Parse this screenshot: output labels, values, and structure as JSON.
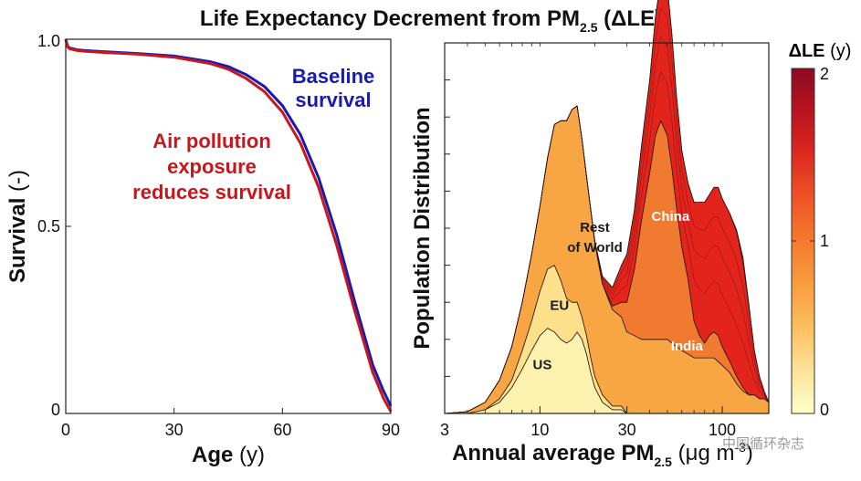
{
  "figure": {
    "title_main": "Life Expectancy Decrement from PM",
    "title_sub": "2.5",
    "title_tail": " (ΔLE)",
    "watermark": "中国循环杂志"
  },
  "chart_data": [
    {
      "type": "line",
      "xlabel_main": "Age",
      "xlabel_unit": " (y)",
      "ylabel_main": "Survival",
      "ylabel_unit": " (-)",
      "xlim": [
        0,
        90
      ],
      "ylim": [
        0,
        1
      ],
      "x_ticks": [
        "0",
        "30",
        "60",
        "90"
      ],
      "x_tick_values": [
        0,
        30,
        60,
        90
      ],
      "y_ticks": [
        "0",
        "0.5",
        "1.0"
      ],
      "y_tick_values": [
        0,
        0.5,
        1.0
      ],
      "annotations": [
        {
          "lines": [
            "Baseline",
            "survival"
          ],
          "color": "#1a1ab0"
        },
        {
          "lines": [
            "Air pollution",
            "exposure",
            "reduces survival"
          ],
          "color": "#c8161d"
        }
      ],
      "series": [
        {
          "name": "Baseline survival",
          "color": "#1a1ab0",
          "x": [
            0,
            0.5,
            1,
            3,
            5,
            10,
            20,
            30,
            40,
            45,
            50,
            55,
            60,
            65,
            70,
            75,
            80,
            85,
            88,
            90
          ],
          "y": [
            1.0,
            0.982,
            0.977,
            0.972,
            0.97,
            0.967,
            0.962,
            0.955,
            0.94,
            0.927,
            0.905,
            0.874,
            0.823,
            0.745,
            0.63,
            0.478,
            0.3,
            0.13,
            0.06,
            0.02
          ]
        },
        {
          "name": "Air pollution exposure reduces survival",
          "color": "#c8161d",
          "x": [
            0,
            0.5,
            1,
            3,
            5,
            10,
            20,
            30,
            40,
            45,
            50,
            55,
            60,
            65,
            70,
            75,
            80,
            85,
            88,
            90
          ],
          "y": [
            1.0,
            0.98,
            0.975,
            0.97,
            0.968,
            0.965,
            0.96,
            0.952,
            0.935,
            0.92,
            0.895,
            0.86,
            0.805,
            0.722,
            0.605,
            0.45,
            0.275,
            0.11,
            0.04,
            0.005
          ]
        }
      ]
    },
    {
      "type": "area",
      "stacked": true,
      "x_scale": "log",
      "xlabel_main": "Annual average PM",
      "xlabel_sub": "2.5",
      "xlabel_unit": " (μg m",
      "xlabel_sup": "-3",
      "xlabel_close": ")",
      "ylabel": "Population Distribution",
      "xlim": [
        3,
        180
      ],
      "ylim": [
        0,
        1
      ],
      "x_ticks": [
        "3",
        "10",
        "30",
        "100"
      ],
      "x_tick_values": [
        3,
        10,
        30,
        100
      ],
      "colorbar": {
        "label": "ΔLE",
        "unit": " (y)",
        "range": [
          0,
          2
        ],
        "ticks": [
          "0",
          "1",
          "2"
        ],
        "tick_values": [
          0,
          1,
          2
        ],
        "stops": [
          {
            "value": 0,
            "color": "#ffffc8"
          },
          {
            "value": 0.25,
            "color": "#fde29a"
          },
          {
            "value": 0.5,
            "color": "#fcbf5e"
          },
          {
            "value": 0.75,
            "color": "#f99c3e"
          },
          {
            "value": 1.0,
            "color": "#f57a2e"
          },
          {
            "value": 1.25,
            "color": "#ee5428"
          },
          {
            "value": 1.5,
            "color": "#dc2a20"
          },
          {
            "value": 1.75,
            "color": "#b8141f"
          },
          {
            "value": 2.0,
            "color": "#8c0a22"
          }
        ]
      },
      "x": [
        3,
        4,
        5,
        6,
        7,
        8,
        9,
        10,
        11,
        12,
        13,
        14,
        15,
        16,
        17,
        18,
        19,
        20,
        22,
        25,
        28,
        30,
        33,
        36,
        40,
        43,
        46,
        50,
        53,
        56,
        60,
        65,
        70,
        75,
        80,
        85,
        90,
        95,
        100,
        110,
        120,
        130,
        140,
        150,
        160,
        170,
        180
      ],
      "layers": [
        {
          "name": "US",
          "color": "#fff2b0",
          "values": [
            0,
            0,
            0.01,
            0.03,
            0.07,
            0.12,
            0.17,
            0.21,
            0.23,
            0.22,
            0.2,
            0.19,
            0.2,
            0.22,
            0.2,
            0.16,
            0.11,
            0.07,
            0.03,
            0.01,
            0.01,
            0,
            0,
            0,
            0,
            0,
            0,
            0,
            0,
            0,
            0,
            0,
            0,
            0,
            0,
            0,
            0,
            0,
            0,
            0,
            0,
            0,
            0,
            0,
            0,
            0,
            0
          ]
        },
        {
          "name": "EU",
          "color": "#fde08c",
          "values": [
            0,
            0,
            0,
            0.01,
            0.02,
            0.05,
            0.08,
            0.12,
            0.16,
            0.18,
            0.16,
            0.12,
            0.1,
            0.08,
            0.06,
            0.05,
            0.04,
            0.03,
            0.02,
            0.01,
            0.01,
            0,
            0,
            0,
            0,
            0,
            0,
            0,
            0,
            0,
            0,
            0,
            0,
            0,
            0,
            0,
            0,
            0,
            0,
            0,
            0,
            0,
            0,
            0,
            0,
            0,
            0
          ]
        },
        {
          "name": "Rest of World",
          "color": "#f8a644",
          "values": [
            0,
            0.005,
            0.02,
            0.05,
            0.09,
            0.13,
            0.18,
            0.23,
            0.3,
            0.38,
            0.43,
            0.48,
            0.52,
            0.53,
            0.48,
            0.43,
            0.4,
            0.36,
            0.3,
            0.26,
            0.24,
            0.22,
            0.21,
            0.2,
            0.2,
            0.2,
            0.2,
            0.2,
            0.19,
            0.18,
            0.17,
            0.16,
            0.15,
            0.15,
            0.15,
            0.15,
            0.15,
            0.14,
            0.13,
            0.11,
            0.08,
            0.06,
            0.05,
            0.05,
            0.04,
            0.04,
            0.03
          ]
        },
        {
          "name": "China",
          "color": "#f07a30",
          "values": [
            0,
            0,
            0,
            0,
            0,
            0,
            0,
            0,
            0,
            0,
            0,
            0,
            0,
            0,
            0,
            0,
            0,
            0,
            0,
            0.01,
            0.04,
            0.08,
            0.18,
            0.32,
            0.45,
            0.55,
            0.59,
            0.55,
            0.47,
            0.38,
            0.28,
            0.2,
            0.1,
            0.06,
            0.04,
            0.06,
            0.07,
            0.07,
            0.05,
            0.03,
            0.02,
            0.01,
            0,
            0,
            0,
            0,
            0
          ]
        },
        {
          "name": "India",
          "color": "#e3241c",
          "values": [
            0,
            0,
            0,
            0,
            0,
            0,
            0,
            0,
            0,
            0,
            0,
            0,
            0,
            0,
            0,
            0,
            0,
            0.005,
            0.02,
            0.05,
            0.1,
            0.13,
            0.16,
            0.2,
            0.25,
            0.32,
            0.38,
            0.4,
            0.36,
            0.3,
            0.26,
            0.26,
            0.32,
            0.36,
            0.38,
            0.38,
            0.39,
            0.4,
            0.4,
            0.4,
            0.39,
            0.34,
            0.24,
            0.12,
            0.06,
            0.02,
            0
          ]
        },
        {
          "name": "",
          "color": "#b8141f",
          "values": [
            0,
            0,
            0,
            0,
            0,
            0,
            0,
            0,
            0,
            0,
            0,
            0,
            0,
            0,
            0,
            0,
            0,
            0,
            0,
            0,
            0,
            0,
            0,
            0,
            0,
            0,
            0,
            0,
            0,
            0,
            0,
            0,
            0,
            0,
            0,
            0,
            0,
            0,
            0,
            0,
            0.005,
            0.01,
            0.005,
            0,
            0,
            0,
            0
          ]
        }
      ],
      "region_labels": [
        {
          "lines": [
            "Rest",
            "of World"
          ],
          "color": "#1a1a1a",
          "x": 20,
          "y": 0.49
        },
        {
          "lines": [
            "China"
          ],
          "color": "#ffffff",
          "x": 52,
          "y": 0.52
        },
        {
          "lines": [
            "EU"
          ],
          "color": "#1a1a1a",
          "x": 12.8,
          "y": 0.28
        },
        {
          "lines": [
            "US"
          ],
          "color": "#1a1a1a",
          "x": 10.3,
          "y": 0.12
        },
        {
          "lines": [
            "India"
          ],
          "color": "#ffffff",
          "x": 64,
          "y": 0.17
        }
      ]
    }
  ]
}
